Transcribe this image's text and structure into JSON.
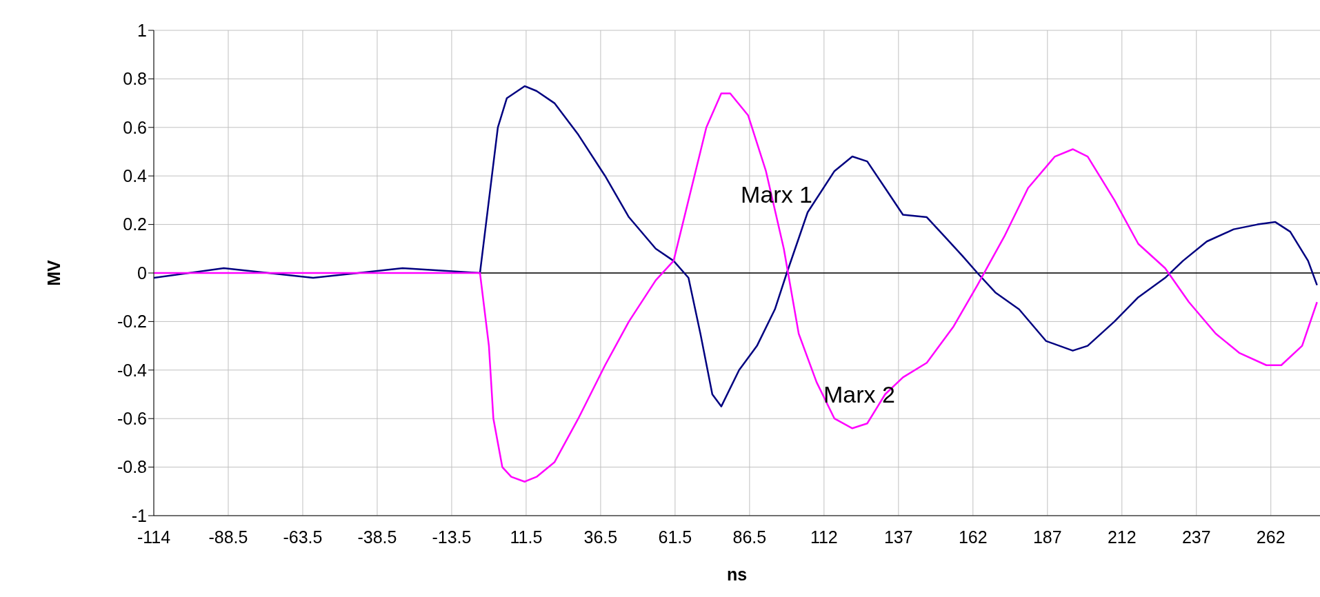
{
  "chart_data": {
    "type": "line",
    "xlabel": "ns",
    "ylabel": "MV",
    "grid": true,
    "legend": false,
    "marker": "none",
    "xlim": [
      -113.5,
      278
    ],
    "xticks": [
      {
        "value": -113.5,
        "label": "-114"
      },
      -88.5,
      -63.5,
      -38.5,
      -13.5,
      11.5,
      36.5,
      61.5,
      86.5,
      {
        "value": 111.5,
        "label": "112"
      },
      {
        "value": 136.5,
        "label": "137"
      },
      {
        "value": 161.5,
        "label": "162"
      },
      {
        "value": 186.5,
        "label": "187"
      },
      {
        "value": 211.5,
        "label": "212"
      },
      {
        "value": 236.5,
        "label": "237"
      },
      {
        "value": 261.5,
        "label": "262"
      }
    ],
    "ylim": [
      -1,
      1
    ],
    "yticks": [
      -1,
      {
        "value": -0.8,
        "label": "-0.8"
      },
      {
        "value": -0.6,
        "label": "-0.6"
      },
      {
        "value": -0.4,
        "label": "-0.4"
      },
      {
        "value": -0.2,
        "label": "-0.2"
      },
      0,
      0.2,
      0.4,
      0.6,
      0.8,
      1
    ],
    "series": [
      {
        "name": "Marx 1",
        "color": "#000080",
        "x": [
          -113.5,
          -90,
          -60,
          -30,
          -4,
          -1,
          2,
          5,
          11,
          15,
          21,
          29,
          38,
          46,
          55,
          61,
          66,
          70,
          74,
          77,
          83,
          89,
          95,
          99,
          106,
          115,
          121,
          126,
          132,
          138,
          146,
          152,
          158,
          163,
          169,
          177,
          186,
          195,
          200,
          209,
          217,
          226,
          232,
          240,
          249,
          257,
          263,
          268,
          274,
          277
        ],
        "values": [
          -0.02,
          0.02,
          -0.02,
          0.02,
          0,
          0.3,
          0.6,
          0.72,
          0.77,
          0.75,
          0.7,
          0.57,
          0.4,
          0.23,
          0.1,
          0.05,
          -0.02,
          -0.25,
          -0.5,
          -0.55,
          -0.4,
          -0.3,
          -0.15,
          0,
          0.25,
          0.42,
          0.48,
          0.46,
          0.35,
          0.24,
          0.23,
          0.15,
          0.07,
          0,
          -0.08,
          -0.15,
          -0.28,
          -0.32,
          -0.3,
          -0.2,
          -0.1,
          -0.02,
          0.05,
          0.13,
          0.18,
          0.2,
          0.21,
          0.17,
          0.05,
          -0.05
        ]
      },
      {
        "name": "Marx 2",
        "color": "#ff00ff",
        "x": [
          -113.5,
          -90,
          -60,
          -30,
          -4,
          -1,
          0.5,
          3.5,
          6.5,
          11,
          15,
          21,
          29,
          38,
          46,
          55,
          61,
          66,
          72,
          77,
          80,
          86,
          92,
          98,
          103,
          109,
          115,
          121,
          126,
          132,
          138,
          146,
          155,
          163,
          172,
          180,
          189,
          195,
          200,
          209,
          217,
          226,
          234,
          243,
          251,
          260,
          265,
          272,
          277
        ],
        "values": [
          0,
          0,
          0,
          0,
          0,
          -0.3,
          -0.6,
          -0.8,
          -0.84,
          -0.86,
          -0.84,
          -0.78,
          -0.6,
          -0.38,
          -0.2,
          -0.03,
          0.05,
          0.3,
          0.6,
          0.74,
          0.74,
          0.65,
          0.42,
          0.1,
          -0.25,
          -0.45,
          -0.6,
          -0.64,
          -0.62,
          -0.5,
          -0.43,
          -0.37,
          -0.22,
          -0.05,
          0.15,
          0.35,
          0.48,
          0.51,
          0.48,
          0.3,
          0.12,
          0.02,
          -0.12,
          -0.25,
          -0.33,
          -0.38,
          -0.38,
          -0.3,
          -0.12
        ]
      }
    ]
  }
}
